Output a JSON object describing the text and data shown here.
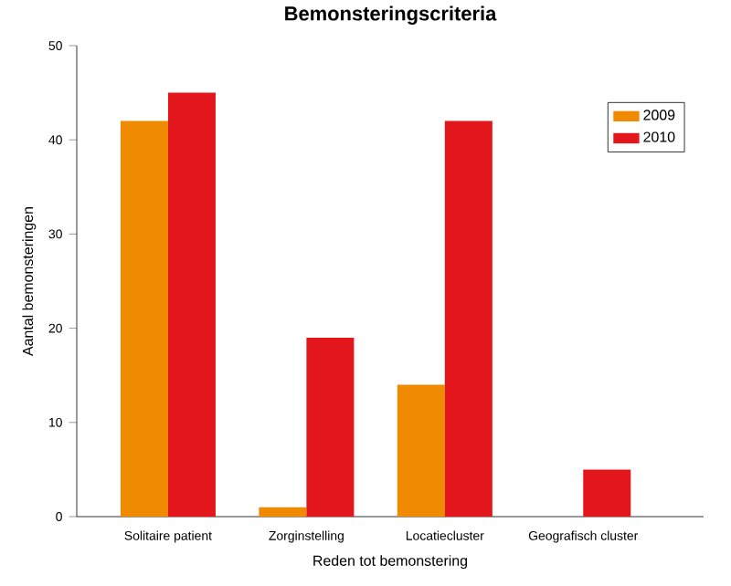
{
  "chart_data": {
    "type": "bar",
    "title": "Bemonsteringscriteria",
    "xlabel": "Reden tot bemonstering",
    "ylabel": "Aantal bemonsteringen",
    "categories": [
      "Solitaire patient",
      "Zorginstelling",
      "Locatiecluster",
      "Geografisch cluster"
    ],
    "series": [
      {
        "name": "2009",
        "color": "#f08a00",
        "values": [
          42,
          1,
          14,
          null
        ]
      },
      {
        "name": "2010",
        "color": "#e3171b",
        "values": [
          45,
          19,
          42,
          5
        ]
      }
    ],
    "ylim": [
      0,
      50
    ],
    "yticks": [
      0,
      10,
      20,
      30,
      40,
      50
    ],
    "grid": false,
    "legend": "top right"
  }
}
